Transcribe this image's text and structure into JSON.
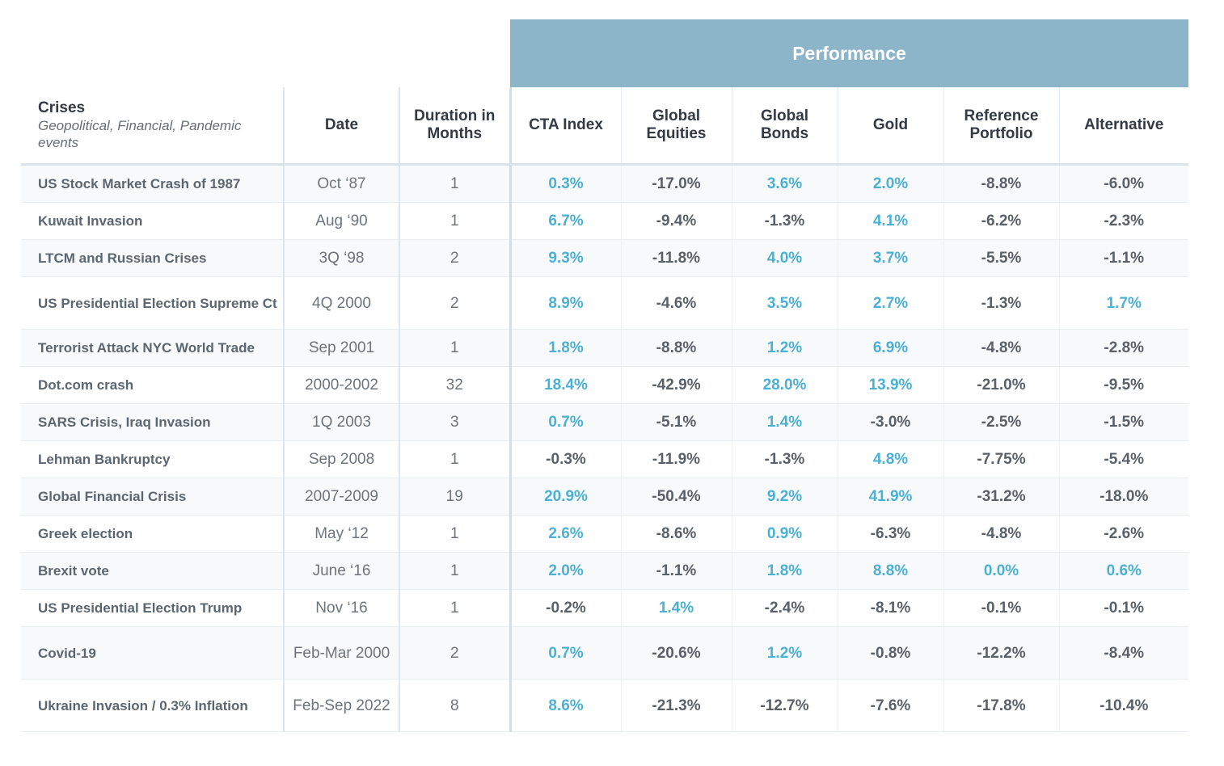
{
  "banner": {
    "label": "Performance"
  },
  "headers": {
    "crises": "Crises",
    "crises_sub": "Geopolitical, Financial, Pandemic events",
    "date": "Date",
    "duration": "Duration in Months",
    "cta": "CTA Index",
    "equities": "Global Equities",
    "bonds": "Global Bonds",
    "gold": "Gold",
    "reference": "Reference Portfolio",
    "alternative": "Alternative"
  },
  "colors": {
    "banner": "#8db5ca",
    "positive": "#4ab0d4",
    "negative": "#5a6068"
  },
  "rows": [
    {
      "crisis": "US Stock Market Crash of 1987",
      "date": "Oct ‘87",
      "duration": "1",
      "cta": "0.3%",
      "equities": "-17.0%",
      "bonds": "3.6%",
      "gold": "2.0%",
      "reference": "-8.8%",
      "alternative": "-6.0%"
    },
    {
      "crisis": "Kuwait Invasion",
      "date": "Aug ‘90",
      "duration": "1",
      "cta": "6.7%",
      "equities": "-9.4%",
      "bonds": "-1.3%",
      "gold": "4.1%",
      "reference": "-6.2%",
      "alternative": "-2.3%"
    },
    {
      "crisis": "LTCM and Russian Crises",
      "date": "3Q ‘98",
      "duration": "2",
      "cta": "9.3%",
      "equities": "-11.8%",
      "bonds": "4.0%",
      "gold": "3.7%",
      "reference": "-5.5%",
      "alternative": "-1.1%"
    },
    {
      "crisis": "US Presidential Election Supreme Ct",
      "date": "4Q 2000",
      "duration": "2",
      "cta": "8.9%",
      "equities": "-4.6%",
      "bonds": "3.5%",
      "gold": "2.7%",
      "reference": "-1.3%",
      "alternative": "1.7%"
    },
    {
      "crisis": "Terrorist Attack NYC World Trade",
      "date": "Sep 2001",
      "duration": "1",
      "cta": "1.8%",
      "equities": "-8.8%",
      "bonds": "1.2%",
      "gold": "6.9%",
      "reference": "-4.8%",
      "alternative": "-2.8%"
    },
    {
      "crisis": "Dot.com crash",
      "date": "2000-2002",
      "duration": "32",
      "cta": "18.4%",
      "equities": "-42.9%",
      "bonds": "28.0%",
      "gold": "13.9%",
      "reference": "-21.0%",
      "alternative": "-9.5%"
    },
    {
      "crisis": "SARS Crisis, Iraq Invasion",
      "date": "1Q 2003",
      "duration": "3",
      "cta": "0.7%",
      "equities": "-5.1%",
      "bonds": "1.4%",
      "gold": "-3.0%",
      "reference": "-2.5%",
      "alternative": "-1.5%"
    },
    {
      "crisis": "Lehman Bankruptcy",
      "date": "Sep 2008",
      "duration": "1",
      "cta": "-0.3%",
      "equities": "-11.9%",
      "bonds": "-1.3%",
      "gold": "4.8%",
      "reference": "-7.75%",
      "alternative": "-5.4%"
    },
    {
      "crisis": "Global Financial Crisis",
      "date": "2007-2009",
      "duration": "19",
      "cta": "20.9%",
      "equities": "-50.4%",
      "bonds": "9.2%",
      "gold": "41.9%",
      "reference": "-31.2%",
      "alternative": "-18.0%"
    },
    {
      "crisis": "Greek election",
      "date": "May ‘12",
      "duration": "1",
      "cta": "2.6%",
      "equities": "-8.6%",
      "bonds": "0.9%",
      "gold": "-6.3%",
      "reference": "-4.8%",
      "alternative": "-2.6%"
    },
    {
      "crisis": "Brexit vote",
      "date": "June ‘16",
      "duration": "1",
      "cta": "2.0%",
      "equities": "-1.1%",
      "bonds": "1.8%",
      "gold": "8.8%",
      "reference": "0.0%",
      "alternative": "0.6%"
    },
    {
      "crisis": "US Presidential Election Trump",
      "date": "Nov ‘16",
      "duration": "1",
      "cta": "-0.2%",
      "equities": "1.4%",
      "bonds": "-2.4%",
      "gold": "-8.1%",
      "reference": "-0.1%",
      "alternative": "-0.1%"
    },
    {
      "crisis": "Covid-19",
      "date": "Feb-Mar 2000",
      "duration": "2",
      "cta": "0.7%",
      "equities": "-20.6%",
      "bonds": "1.2%",
      "gold": "-0.8%",
      "reference": "-12.2%",
      "alternative": "-8.4%"
    },
    {
      "crisis": "Ukraine Invasion / 0.3% Inflation",
      "date": "Feb-Sep 2022",
      "duration": "8",
      "cta": "8.6%",
      "equities": "-21.3%",
      "bonds": "-12.7%",
      "gold": "-7.6%",
      "reference": "-17.8%",
      "alternative": "-10.4%"
    }
  ]
}
